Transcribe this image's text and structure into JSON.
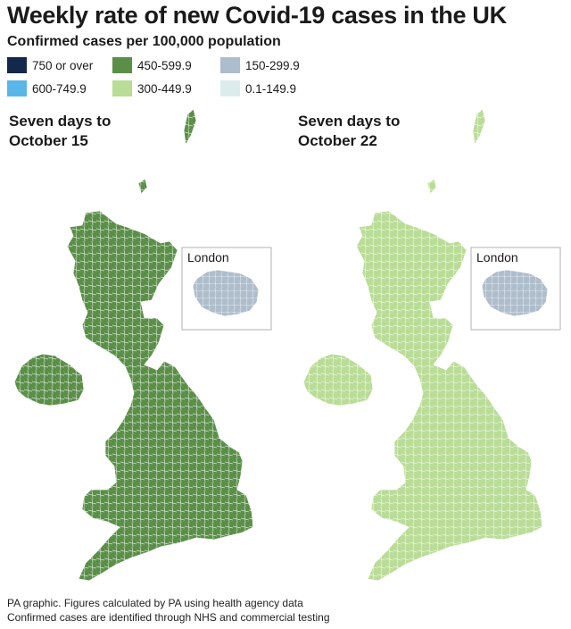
{
  "title": "Weekly rate of new Covid-19 cases in the UK",
  "subtitle": "Confirmed cases per 100,000 population",
  "legend": [
    {
      "label": "750 or over",
      "color": "#13294b"
    },
    {
      "label": "600-749.9",
      "color": "#5ab6e8"
    },
    {
      "label": "450-599.9",
      "color": "#5a8f48"
    },
    {
      "label": "300-449.9",
      "color": "#b9dc96"
    },
    {
      "label": "150-299.9",
      "color": "#aebdcb"
    },
    {
      "label": "0.1-149.9",
      "color": "#dcecec"
    }
  ],
  "panels": [
    {
      "label_line1": "Seven days to",
      "label_line2": "October 15",
      "inset_label": "London"
    },
    {
      "label_line1": "Seven days to",
      "label_line2": "October 22",
      "inset_label": "London"
    }
  ],
  "footnotes": [
    "PA graphic. Figures calculated by PA using health agency data",
    "Confirmed cases are identified through NHS and commercial testing"
  ]
}
